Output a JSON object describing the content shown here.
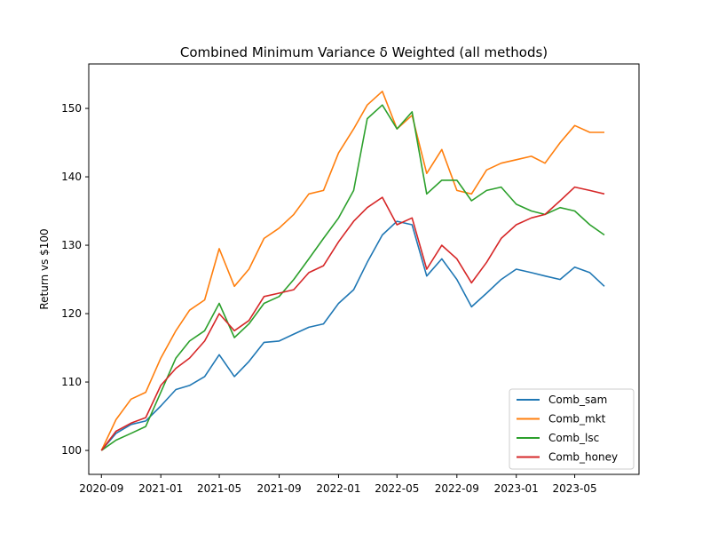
{
  "chart_data": {
    "type": "line",
    "title": "Combined Minimum Variance δ Weighted (all methods)",
    "xlabel": "",
    "ylabel": "Return vs $100",
    "xlim": [
      "2020-08-06",
      "2023-09-10"
    ],
    "ylim": [
      96.5,
      156.5
    ],
    "x_ticks": [
      "2020-09",
      "2021-01",
      "2021-05",
      "2021-09",
      "2022-01",
      "2022-05",
      "2022-09",
      "2023-01",
      "2023-05"
    ],
    "y_ticks": [
      100,
      110,
      120,
      130,
      140,
      150
    ],
    "grid": false,
    "legend_position": "lower right",
    "x": [
      "2020-09-01",
      "2020-10-01",
      "2020-11-01",
      "2020-12-01",
      "2021-01-01",
      "2021-02-01",
      "2021-03-01",
      "2021-04-01",
      "2021-05-01",
      "2021-06-01",
      "2021-07-01",
      "2021-08-01",
      "2021-09-01",
      "2021-10-01",
      "2021-11-01",
      "2021-12-01",
      "2022-01-01",
      "2022-02-01",
      "2022-03-01",
      "2022-04-01",
      "2022-05-01",
      "2022-06-01",
      "2022-07-01",
      "2022-08-01",
      "2022-09-01",
      "2022-10-01",
      "2022-11-01",
      "2022-12-01",
      "2023-01-01",
      "2023-02-01",
      "2023-03-01",
      "2023-04-01",
      "2023-05-01",
      "2023-06-01",
      "2023-07-01"
    ],
    "series": [
      {
        "name": "Comb_sam",
        "color": "#1f77b4",
        "values": [
          100.0,
          102.5,
          103.8,
          104.3,
          106.5,
          108.9,
          109.5,
          110.8,
          114.0,
          110.8,
          113.0,
          115.8,
          116.0,
          117.0,
          118.0,
          118.5,
          121.5,
          123.5,
          127.5,
          131.5,
          133.5,
          133.0,
          125.5,
          128.0,
          125.0,
          121.0,
          123.0,
          125.0,
          126.5,
          126.0,
          125.5,
          125.0,
          126.8,
          126.0,
          124.0
        ]
      },
      {
        "name": "Comb_mkt",
        "color": "#ff7f0e",
        "values": [
          100.0,
          104.5,
          107.5,
          108.5,
          113.5,
          117.5,
          120.5,
          122.0,
          129.5,
          124.0,
          126.5,
          131.0,
          132.5,
          134.5,
          137.5,
          138.0,
          143.5,
          147.0,
          150.5,
          152.5,
          147.0,
          149.0,
          140.5,
          144.0,
          138.0,
          137.5,
          141.0,
          142.0,
          142.5,
          143.0,
          142.0,
          145.0,
          147.5,
          146.5,
          146.5
        ]
      },
      {
        "name": "Comb_lsc",
        "color": "#2ca02c",
        "values": [
          100.0,
          101.5,
          102.5,
          103.5,
          108.5,
          113.5,
          116.0,
          117.5,
          121.5,
          116.5,
          118.5,
          121.5,
          122.5,
          125.0,
          128.0,
          131.0,
          134.0,
          138.0,
          148.5,
          150.5,
          147.0,
          149.5,
          137.5,
          139.5,
          139.5,
          136.5,
          138.0,
          138.5,
          136.0,
          135.0,
          134.5,
          135.5,
          135.0,
          133.0,
          131.5
        ]
      },
      {
        "name": "Comb_honey",
        "color": "#d62728",
        "values": [
          100.0,
          102.8,
          104.0,
          104.8,
          109.5,
          112.0,
          113.5,
          116.0,
          120.0,
          117.5,
          119.0,
          122.5,
          123.0,
          123.5,
          126.0,
          127.0,
          130.5,
          133.5,
          135.5,
          137.0,
          133.0,
          134.0,
          126.5,
          130.0,
          128.0,
          124.5,
          127.5,
          131.0,
          133.0,
          134.0,
          134.5,
          136.5,
          138.5,
          138.0,
          137.5
        ]
      }
    ]
  }
}
